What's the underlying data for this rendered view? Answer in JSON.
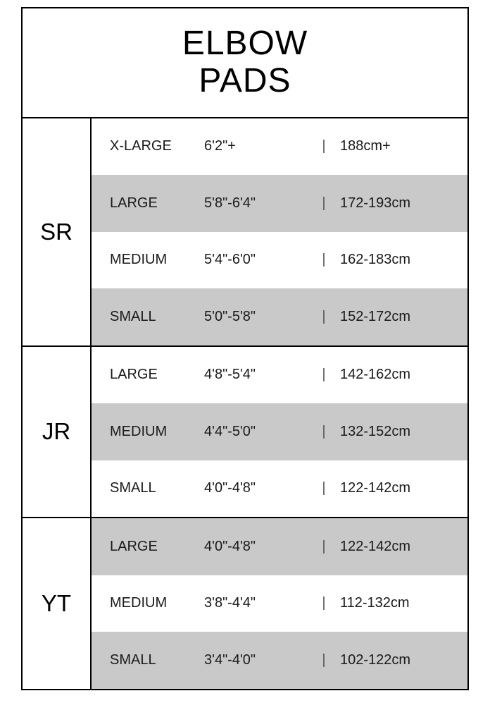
{
  "title_line1": "ELBOW",
  "title_line2": "PADS",
  "colors": {
    "row_shaded": "#c9c9c9",
    "row_plain": "#ffffff",
    "border": "#000000",
    "text": "#1a1a1a"
  },
  "groups": [
    {
      "category": "SR",
      "rows": [
        {
          "size": "X-LARGE",
          "imperial": "6'2\"+",
          "metric": "188cm+",
          "shaded": false
        },
        {
          "size": "LARGE",
          "imperial": "5'8\"-6'4\"",
          "metric": "172-193cm",
          "shaded": true
        },
        {
          "size": "MEDIUM",
          "imperial": "5'4\"-6'0\"",
          "metric": "162-183cm",
          "shaded": false
        },
        {
          "size": "SMALL",
          "imperial": "5'0\"-5'8\"",
          "metric": "152-172cm",
          "shaded": true
        }
      ]
    },
    {
      "category": "JR",
      "rows": [
        {
          "size": "LARGE",
          "imperial": "4'8\"-5'4\"",
          "metric": "142-162cm",
          "shaded": false
        },
        {
          "size": "MEDIUM",
          "imperial": "4'4\"-5'0\"",
          "metric": "132-152cm",
          "shaded": true
        },
        {
          "size": "SMALL",
          "imperial": "4'0\"-4'8\"",
          "metric": "122-142cm",
          "shaded": false
        }
      ]
    },
    {
      "category": "YT",
      "rows": [
        {
          "size": "LARGE",
          "imperial": "4'0\"-4'8\"",
          "metric": "122-142cm",
          "shaded": true
        },
        {
          "size": "MEDIUM",
          "imperial": "3'8\"-4'4\"",
          "metric": "112-132cm",
          "shaded": false
        },
        {
          "size": "SMALL",
          "imperial": "3'4\"-4'0\"",
          "metric": "102-122cm",
          "shaded": true
        }
      ]
    }
  ],
  "separator": "|"
}
